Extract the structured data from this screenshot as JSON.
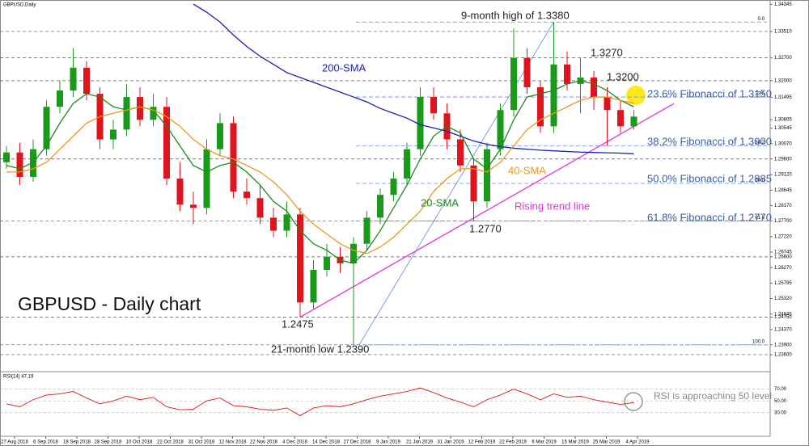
{
  "chart_data": {
    "type": "candlestick",
    "title": "GBPUSD,Daily",
    "x_labels": [
      "27 Aug 2018",
      "6 Sep 2018",
      "18 Sep 2018",
      "28 Sep 2018",
      "10 Oct 2018",
      "22 Oct 2018",
      "31 Oct 2018",
      "12 Nov 2018",
      "22 Nov 2018",
      "4 Dec 2018",
      "14 Dec 2018",
      "27 Dec 2018",
      "9 Jan 2019",
      "21 Jan 2019",
      "31 Jan 2019",
      "12 Feb 2019",
      "22 Feb 2019",
      "6 Mar 2019",
      "15 Mar 2019",
      "25 Mar 2019",
      "4 Apr 2019"
    ],
    "open": [
      1.295,
      1.298,
      1.2905,
      1.299,
      1.312,
      1.317,
      1.324,
      1.316,
      1.302,
      1.305,
      1.315,
      1.308,
      1.312,
      1.29,
      1.282,
      1.281,
      1.299,
      1.307,
      1.286,
      1.284,
      1.278,
      1.274,
      1.279,
      1.252,
      1.262,
      1.266,
      1.264,
      1.27,
      1.278,
      1.285,
      1.29,
      1.299,
      1.315,
      1.31,
      1.302,
      1.294,
      1.283,
      1.299,
      1.311,
      1.327,
      1.318,
      1.306,
      1.325,
      1.319,
      1.321,
      1.315,
      1.311,
      1.306
    ],
    "high": [
      1.3,
      1.301,
      1.302,
      1.314,
      1.32,
      1.33,
      1.326,
      1.318,
      1.308,
      1.319,
      1.318,
      1.316,
      1.315,
      1.295,
      1.286,
      1.302,
      1.31,
      1.309,
      1.29,
      1.288,
      1.281,
      1.283,
      1.281,
      1.265,
      1.27,
      1.269,
      1.272,
      1.28,
      1.287,
      1.292,
      1.301,
      1.318,
      1.318,
      1.313,
      1.305,
      1.296,
      1.301,
      1.313,
      1.336,
      1.33,
      1.32,
      1.338,
      1.329,
      1.327,
      1.323,
      1.318,
      1.314,
      1.311
    ],
    "low": [
      1.293,
      1.288,
      1.289,
      1.297,
      1.31,
      1.315,
      1.314,
      1.299,
      1.299,
      1.303,
      1.306,
      1.306,
      1.288,
      1.28,
      1.276,
      1.279,
      1.297,
      1.284,
      1.282,
      1.276,
      1.272,
      1.272,
      1.2475,
      1.25,
      1.26,
      1.261,
      1.239,
      1.268,
      1.276,
      1.283,
      1.288,
      1.297,
      1.308,
      1.299,
      1.292,
      1.277,
      1.281,
      1.297,
      1.309,
      1.316,
      1.304,
      1.304,
      1.317,
      1.31,
      1.311,
      1.3,
      1.304,
      1.305
    ],
    "close": [
      1.298,
      1.2905,
      1.299,
      1.312,
      1.317,
      1.324,
      1.316,
      1.302,
      1.305,
      1.315,
      1.308,
      1.312,
      1.29,
      1.282,
      1.281,
      1.299,
      1.307,
      1.286,
      1.284,
      1.278,
      1.274,
      1.279,
      1.252,
      1.262,
      1.266,
      1.264,
      1.27,
      1.278,
      1.285,
      1.29,
      1.299,
      1.315,
      1.31,
      1.302,
      1.294,
      1.283,
      1.299,
      1.311,
      1.327,
      1.318,
      1.306,
      1.325,
      1.319,
      1.321,
      1.315,
      1.311,
      1.306,
      1.309
    ],
    "up_color": "#1a9a1a",
    "down_color": "#e0141e",
    "series": [
      {
        "name": "200-SMA",
        "color": "#1e1eb4",
        "values": [
          null,
          null,
          null,
          null,
          null,
          null,
          null,
          null,
          null,
          null,
          null,
          null,
          null,
          null,
          1.3435,
          1.341,
          1.338,
          1.334,
          1.3305,
          1.3275,
          1.325,
          1.3225,
          1.321,
          1.3195,
          1.318,
          1.3165,
          1.315,
          1.3135,
          1.3115,
          1.31,
          1.3085,
          1.3065,
          1.3055,
          1.3045,
          1.303,
          1.3015,
          1.3005,
          1.2998,
          1.2993,
          1.299,
          1.2987,
          1.2985,
          1.2983,
          1.2981,
          1.298,
          1.2979,
          1.2978,
          1.2976
        ]
      },
      {
        "name": "20-SMA",
        "color": "#1c8a1c",
        "values": [
          1.294,
          1.293,
          1.295,
          1.3,
          1.307,
          1.313,
          1.316,
          1.315,
          1.312,
          1.311,
          1.312,
          1.311,
          1.306,
          1.3,
          1.294,
          1.292,
          1.294,
          1.295,
          1.292,
          1.288,
          1.283,
          1.28,
          1.274,
          1.27,
          1.268,
          1.265,
          1.264,
          1.268,
          1.274,
          1.281,
          1.288,
          1.296,
          1.303,
          1.306,
          1.304,
          1.296,
          1.293,
          1.299,
          1.308,
          1.315,
          1.316,
          1.317,
          1.319,
          1.32,
          1.319,
          1.317,
          1.314,
          1.312
        ]
      },
      {
        "name": "40-SMA",
        "color": "#f0961e",
        "values": [
          1.292,
          1.292,
          1.293,
          1.295,
          1.299,
          1.303,
          1.307,
          1.309,
          1.31,
          1.311,
          1.312,
          1.311,
          1.309,
          1.306,
          1.302,
          1.299,
          1.297,
          1.296,
          1.294,
          1.292,
          1.289,
          1.285,
          1.28,
          1.276,
          1.273,
          1.27,
          1.268,
          1.267,
          1.269,
          1.272,
          1.276,
          1.28,
          1.286,
          1.29,
          1.293,
          1.293,
          1.292,
          1.295,
          1.3,
          1.305,
          1.308,
          1.31,
          1.312,
          1.314,
          1.315,
          1.315,
          1.314,
          1.313
        ]
      }
    ],
    "trend_line": {
      "x": [
        22,
        50
      ],
      "values": [
        1.2475,
        1.313
      ],
      "color": "#e632d2"
    },
    "fibonacci": [
      {
        "label": "0.0",
        "value": 1.338
      },
      {
        "label": "23.6",
        "value": 1.315
      },
      {
        "label": "38.2",
        "value": 1.3
      },
      {
        "label": "50.0",
        "value": 1.2885
      },
      {
        "label": "61.8",
        "value": 1.277
      },
      {
        "label": "100.0",
        "value": 1.239
      }
    ],
    "levels": [
      1.3351,
      1.327,
      1.32,
      1.296,
      1.277,
      1.266,
      1.2475,
      1.239,
      1.236
    ],
    "ylim": [
      1.2345,
      1.3445
    ],
    "yticks": [
      1.34345,
      {
        "value": 1.3351,
        "label": "1.33510"
      },
      {
        "value": 1.327,
        "label": "1.32700"
      },
      {
        "value": 1.32,
        "label": "1.32000"
      },
      1.31495,
      1.30805,
      1.30545,
      {
        "value": 1.3007,
        "label": "1.30070"
      },
      {
        "value": 1.296,
        "label": "1.29600"
      },
      {
        "value": 1.2912,
        "label": "1.29120"
      },
      1.28645,
      {
        "value": 1.2817,
        "label": "1.28170"
      },
      {
        "value": 1.277,
        "label": "1.27700"
      },
      {
        "value": 1.2722,
        "label": "1.27220"
      },
      1.26745,
      {
        "value": 1.266,
        "label": "1.26600"
      },
      {
        "value": 1.2627,
        "label": "1.26270"
      },
      1.25795,
      {
        "value": 1.2532,
        "label": "1.25320"
      },
      1.24845,
      {
        "value": 1.2475,
        "label": "1.24750"
      },
      {
        "value": 1.2437,
        "label": "1.24370"
      },
      {
        "value": 1.239,
        "label": "1.23900"
      },
      {
        "value": 1.236,
        "label": "1.23600"
      }
    ],
    "rsi": {
      "label": "RSI(14) 47.19",
      "color": "#e0141e",
      "values": [
        45,
        40,
        52,
        60,
        62,
        66,
        55,
        45,
        50,
        58,
        52,
        56,
        40,
        35,
        36,
        50,
        55,
        42,
        40,
        36,
        34,
        38,
        25,
        38,
        42,
        40,
        45,
        52,
        58,
        62,
        66,
        72,
        64,
        55,
        48,
        40,
        52,
        60,
        70,
        62,
        52,
        62,
        56,
        58,
        52,
        48,
        44,
        47.19
      ],
      "ylim": [
        -10,
        90
      ],
      "yticks": [
        {
          "value": 70,
          "label": "70.00"
        },
        {
          "value": 50,
          "label": "50.00"
        },
        {
          "value": 30,
          "label": "30.00"
        }
      ]
    },
    "annotations": [
      "9-month high of 1.3380",
      "1.3270",
      "1.3200",
      "200-SMA",
      "23.6% Fibonacci of 1.3150",
      "38.2% Fibonacci of 1.3000",
      "40-SMA",
      "50.0% Fibonacci of 1.2885",
      "20-SMA",
      "Rising trend line",
      "61.8% Fibonacci of 1.2770",
      "1.2770",
      "GBPUSD - Daily chart",
      "1.2475",
      "21-month low 1.2390",
      "RSI is approaching 50 level"
    ]
  }
}
